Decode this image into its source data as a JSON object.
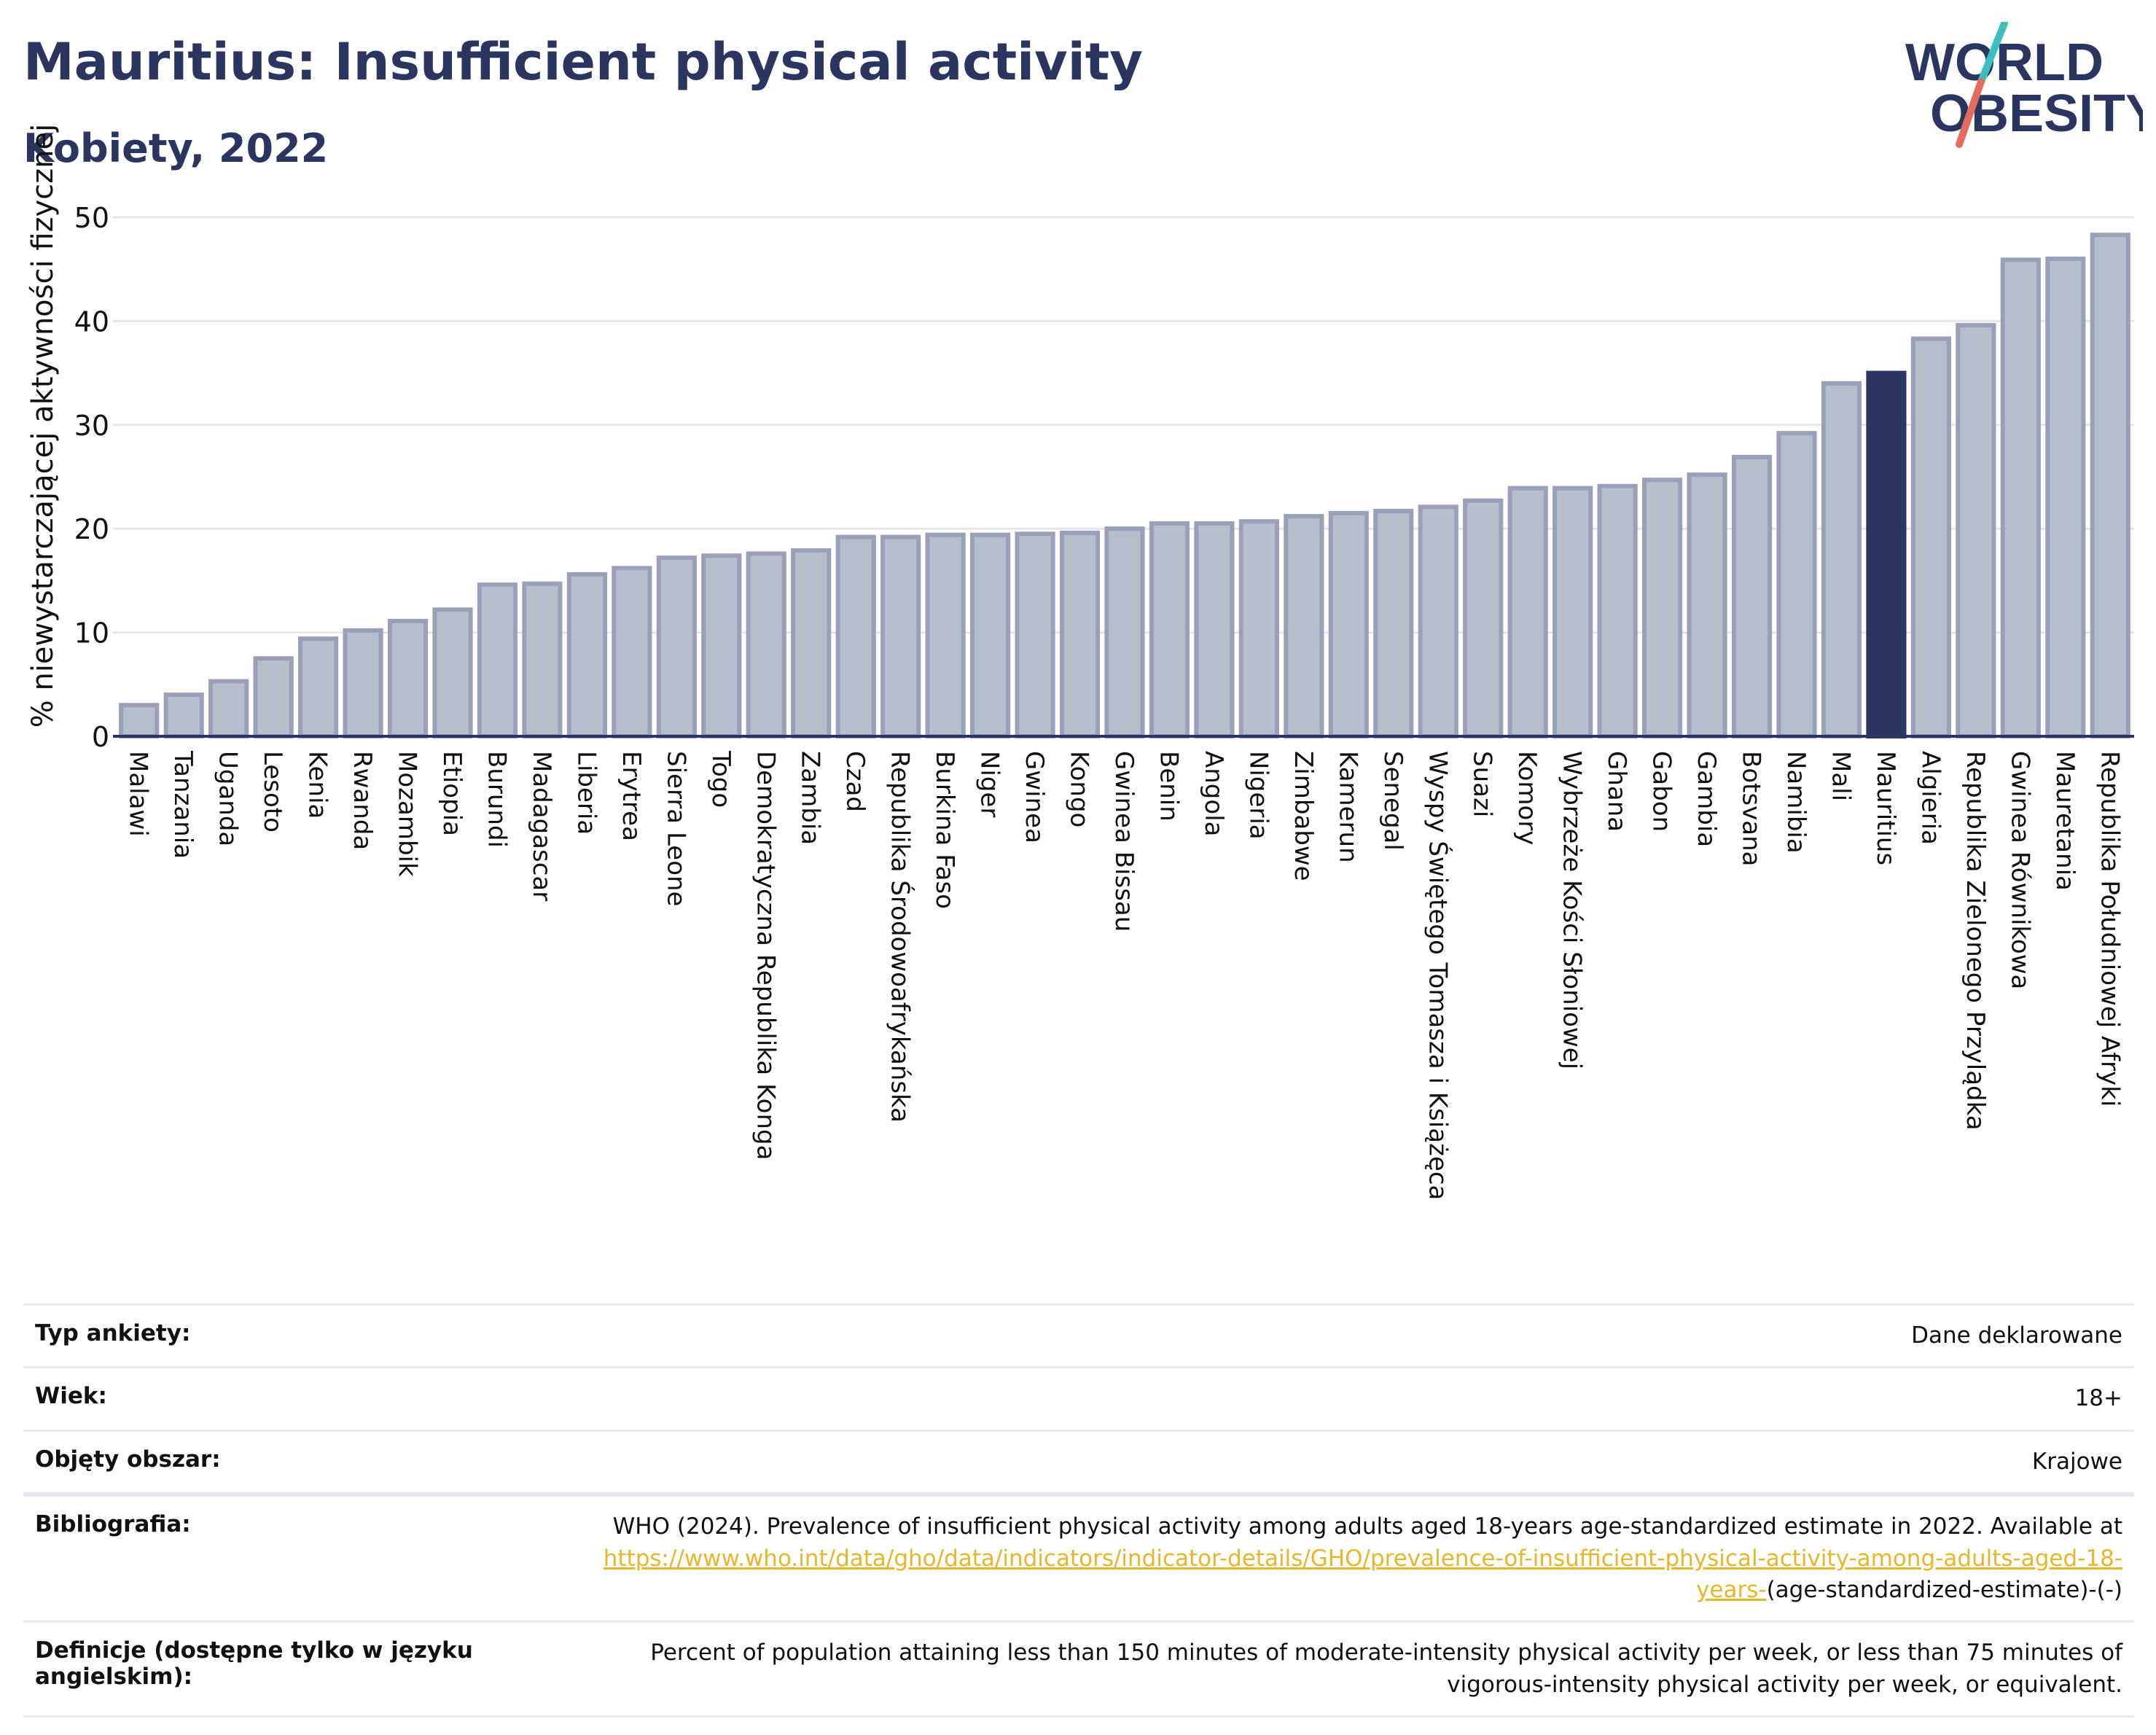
{
  "header": {
    "title": "Mauritius: Insufficient physical activity",
    "subtitle": "Kobiety, 2022"
  },
  "logo": {
    "line1": "WORLD",
    "line2": "OBESITY"
  },
  "colors": {
    "bar": "#b8bdcc",
    "bar_stroke": "#9aa0b8",
    "highlight": "#2b3660",
    "grid": "#e5e6eb",
    "text": "#2b3660"
  },
  "chart_data": {
    "type": "bar",
    "title": "Mauritius: Insufficient physical activity",
    "subtitle": "Kobiety, 2022",
    "xlabel": "",
    "ylabel": "% niewystarczającej aktywności fizycznej",
    "ylim": [
      0,
      50
    ],
    "yticks": [
      0,
      10,
      20,
      30,
      40,
      50
    ],
    "grid": true,
    "highlight": "Mauritius",
    "categories": [
      "Malawi",
      "Tanzania",
      "Uganda",
      "Lesoto",
      "Kenia",
      "Rwanda",
      "Mozambik",
      "Etiopia",
      "Burundi",
      "Madagascar",
      "Liberia",
      "Erytrea",
      "Sierra Leone",
      "Togo",
      "Demokratyczna Republika Konga",
      "Zambia",
      "Czad",
      "Republika Środowoafrykańska",
      "Burkina Faso",
      "Niger",
      "Gwinea",
      "Kongo",
      "Gwinea Bissau",
      "Benin",
      "Angola",
      "Nigeria",
      "Zimbabwe",
      "Kamerun",
      "Senegal",
      "Wyspy Świętego Tomasza i Książęca",
      "Suazi",
      "Komory",
      "Wybrzeże Kości Słoniowej",
      "Ghana",
      "Gabon",
      "Gambia",
      "Botsvana",
      "Namibia",
      "Mali",
      "Mauritius",
      "Algieria",
      "Republika Zielonego Przylądka",
      "Gwinea Równikowa",
      "Mauretania",
      "Republika Południowej Afryki"
    ],
    "values": [
      3.0,
      4.0,
      5.3,
      7.5,
      9.4,
      10.2,
      11.1,
      12.2,
      14.6,
      14.7,
      15.6,
      16.2,
      17.2,
      17.4,
      17.6,
      17.9,
      19.2,
      19.2,
      19.4,
      19.4,
      19.5,
      19.6,
      20.0,
      20.5,
      20.5,
      20.7,
      21.2,
      21.5,
      21.7,
      22.1,
      22.7,
      23.9,
      23.9,
      24.1,
      24.7,
      25.2,
      26.9,
      29.2,
      34.0,
      35.0,
      38.3,
      39.6,
      45.9,
      46.0,
      48.3
    ]
  },
  "info": {
    "rows": [
      {
        "label": "Typ ankiety:",
        "value": "Dane deklarowane"
      },
      {
        "label": "Wiek:",
        "value": "18+"
      },
      {
        "label": "Objęty obszar:",
        "value": "Krajowe"
      }
    ],
    "bibliography": {
      "label": "Bibliografia:",
      "text": "WHO (2024). Prevalence of insufficient physical activity among adults aged 18-years age-standardized estimate in 2022. Available at",
      "link": "https://www.who.int/data/gho/data/indicators/indicator-details/GHO/prevalence-of-insufficient-physical-activity-among-adults-aged-18-years-",
      "suffix": "(age-standardized-estimate)-(-)"
    },
    "definition": {
      "label": "Definicje (dostępne tylko w języku angielskim):",
      "value": "Percent of population attaining less than 150 minutes of moderate-intensity physical activity per week, or less than 75 minutes of vigorous-intensity physical activity per week, or equivalent."
    }
  }
}
